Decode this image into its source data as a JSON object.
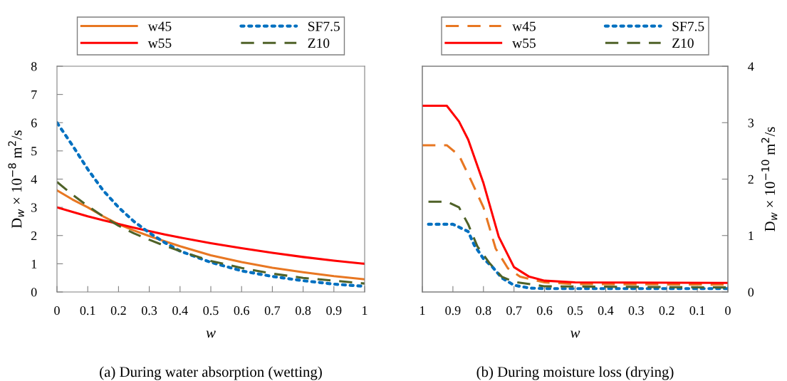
{
  "chart_data": [
    {
      "type": "line",
      "title": "(a) During water absorption (wetting)",
      "xlabel": "w",
      "ylabel": "D$_{w}$ × 10$^{−8}$ m$^{2}$/s",
      "x": [
        0,
        0.05,
        0.1,
        0.15,
        0.2,
        0.25,
        0.3,
        0.35,
        0.4,
        0.5,
        0.6,
        0.7,
        0.8,
        0.9,
        1
      ],
      "xlim": [
        0,
        1
      ],
      "xticks": [
        0,
        0.1,
        0.2,
        0.3,
        0.4,
        0.5,
        0.6,
        0.7,
        0.8,
        0.9,
        1
      ],
      "ylim": [
        0,
        8
      ],
      "yticks": [
        0,
        1,
        2,
        3,
        4,
        5,
        6,
        7,
        8
      ],
      "grid": false,
      "legend": "top",
      "marker": "none",
      "series": [
        {
          "name": "w45",
          "color": "#e87722",
          "line_style": "solid",
          "values": [
            3.6,
            3.28,
            3.0,
            2.68,
            2.4,
            2.18,
            1.98,
            1.8,
            1.62,
            1.3,
            1.06,
            0.86,
            0.7,
            0.56,
            0.45
          ]
        },
        {
          "name": "w55",
          "color": "#ff0000",
          "line_style": "solid",
          "values": [
            3.0,
            2.84,
            2.68,
            2.54,
            2.41,
            2.28,
            2.16,
            2.04,
            1.93,
            1.73,
            1.55,
            1.39,
            1.24,
            1.11,
            1.0
          ]
        },
        {
          "name": "SF7.5",
          "color": "#0070c0",
          "line_style": "dotted",
          "values": [
            6.0,
            5.2,
            4.35,
            3.6,
            3.0,
            2.5,
            2.1,
            1.75,
            1.45,
            1.05,
            0.75,
            0.55,
            0.4,
            0.28,
            0.2
          ]
        },
        {
          "name": "Z10",
          "color": "#4f6228",
          "line_style": "dashed",
          "values": [
            3.9,
            3.45,
            3.05,
            2.68,
            2.35,
            2.08,
            1.85,
            1.64,
            1.45,
            1.1,
            0.85,
            0.65,
            0.5,
            0.4,
            0.3
          ]
        }
      ]
    },
    {
      "type": "line",
      "title": "(b) During moisture loss (drying)",
      "xlabel": "w",
      "y2label": "D$_{w}$ × 10$^{−10}$ m$^{2}$/s",
      "xlim": [
        1,
        0
      ],
      "xticks": [
        1,
        0.9,
        0.8,
        0.7,
        0.6,
        0.5,
        0.4,
        0.3,
        0.2,
        0.1,
        0
      ],
      "y2lim": [
        0,
        4
      ],
      "y2ticks": [
        0,
        1,
        2,
        3,
        4
      ],
      "grid": false,
      "legend": "top",
      "marker": "none",
      "series": [
        {
          "name": "w45",
          "color": "#e87722",
          "line_style": "dashed",
          "axis": "y2",
          "x": [
            1,
            0.92,
            0.88,
            0.84,
            0.8,
            0.76,
            0.72,
            0.68,
            0.6,
            0.5,
            0
          ],
          "values": [
            2.6,
            2.6,
            2.42,
            1.97,
            1.5,
            0.77,
            0.42,
            0.27,
            0.17,
            0.14,
            0.13
          ]
        },
        {
          "name": "w55",
          "color": "#ff0000",
          "line_style": "solid",
          "axis": "y2",
          "x": [
            1,
            0.92,
            0.88,
            0.85,
            0.8,
            0.75,
            0.7,
            0.65,
            0.6,
            0.5,
            0
          ],
          "values": [
            3.3,
            3.3,
            3.02,
            2.7,
            1.93,
            0.98,
            0.44,
            0.27,
            0.2,
            0.17,
            0.16
          ]
        },
        {
          "name": "SF7.5",
          "color": "#0070c0",
          "line_style": "dotted",
          "axis": "y2",
          "x": [
            0.98,
            0.9,
            0.88,
            0.85,
            0.83,
            0.8,
            0.77,
            0.74,
            0.7,
            0.65,
            0.6,
            0
          ],
          "values": [
            1.2,
            1.2,
            1.15,
            1.07,
            0.83,
            0.59,
            0.44,
            0.25,
            0.12,
            0.07,
            0.06,
            0.06
          ]
        },
        {
          "name": "Z10",
          "color": "#4f6228",
          "line_style": "dashed",
          "axis": "y2",
          "x": [
            0.98,
            0.92,
            0.88,
            0.85,
            0.82,
            0.78,
            0.74,
            0.7,
            0.6,
            0
          ],
          "values": [
            1.6,
            1.6,
            1.5,
            1.2,
            0.81,
            0.51,
            0.27,
            0.18,
            0.1,
            0.08
          ]
        }
      ]
    }
  ]
}
